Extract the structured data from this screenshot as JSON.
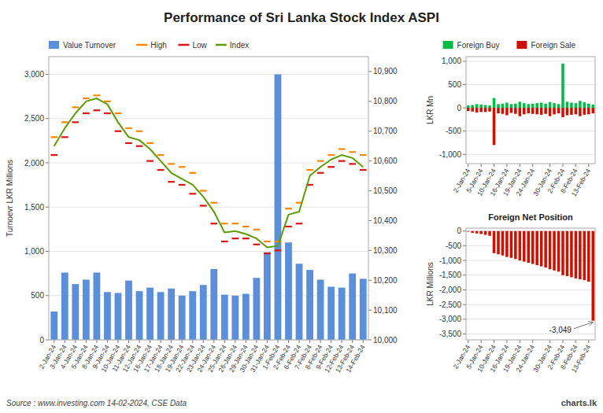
{
  "chart_data": [
    {
      "type": "bar",
      "title": "Performance of Sri Lanka Stock Index ASPI",
      "ylabel": "Turnoevr LKR Millions",
      "categories": [
        "2-Jan-24",
        "3-Jan-24",
        "4-Jan-24",
        "5-Jan-24",
        "8-Jan-24",
        "9-Jan-24",
        "10-Jan-24",
        "11-Jan-24",
        "12-Jan-24",
        "16-Jan-24",
        "17-Jan-24",
        "18-Jan-24",
        "19-Jan-24",
        "22-Jan-24",
        "23-Jan-24",
        "24-Jan-24",
        "25-Jan-24",
        "26-Jan-24",
        "29-Jan-24",
        "30-Jan-24",
        "31-Jan-24",
        "1-Feb-24",
        "2-Feb-24",
        "6-Feb-24",
        "7-Feb-24",
        "8-Feb-24",
        "9-Feb-24",
        "12-Feb-24",
        "13-Feb-24",
        "14-Feb-24"
      ],
      "series": [
        {
          "name": "Value Turnover",
          "type": "bar",
          "color": "#5b8fd9",
          "values": [
            320,
            760,
            630,
            680,
            760,
            540,
            530,
            670,
            550,
            590,
            540,
            580,
            500,
            550,
            620,
            800,
            510,
            500,
            520,
            700,
            990,
            3000,
            1100,
            860,
            790,
            680,
            600,
            590,
            750,
            690
          ]
        },
        {
          "name": "High",
          "type": "scatter",
          "marker": "dash",
          "axis": "y2",
          "color": "#ff8800",
          "values": [
            10680,
            10730,
            10780,
            10810,
            10820,
            10800,
            10760,
            10710,
            10700,
            10660,
            10620,
            10590,
            10580,
            10560,
            10500,
            10460,
            10390,
            10390,
            10380,
            10370,
            10330,
            10330,
            10440,
            10460,
            10570,
            10600,
            10620,
            10640,
            10630,
            10620
          ]
        },
        {
          "name": "Low",
          "type": "scatter",
          "marker": "dash",
          "axis": "y2",
          "color": "#dd1111",
          "values": [
            10620,
            10680,
            10730,
            10760,
            10770,
            10760,
            10700,
            10660,
            10650,
            10600,
            10570,
            10530,
            10520,
            10490,
            10450,
            10390,
            10330,
            10340,
            10340,
            10320,
            10290,
            10300,
            10380,
            10390,
            10520,
            10560,
            10580,
            10600,
            10590,
            10570
          ]
        },
        {
          "name": "Index",
          "type": "line",
          "axis": "y2",
          "color": "#5e9c00",
          "values": [
            10650,
            10710,
            10760,
            10800,
            10810,
            10790,
            10730,
            10680,
            10670,
            10640,
            10600,
            10560,
            10540,
            10520,
            10480,
            10430,
            10360,
            10365,
            10355,
            10340,
            10310,
            10315,
            10420,
            10430,
            10550,
            10580,
            10605,
            10620,
            10610,
            10580
          ]
        }
      ],
      "ylim": [
        0,
        3200
      ],
      "yticks": [
        0,
        500,
        {
          "value": 1000,
          "label": "1,000"
        },
        {
          "value": 1500,
          "label": "1,500"
        },
        {
          "value": 2000,
          "label": "2,000"
        },
        {
          "value": 2500,
          "label": "2,500"
        },
        {
          "value": 3000,
          "label": "3,000"
        }
      ],
      "y2lim": [
        10000,
        10950
      ],
      "y2ticks": [
        {
          "value": 10000,
          "label": "10,000"
        },
        {
          "value": 10100,
          "label": "10,100"
        },
        {
          "value": 10200,
          "label": "10,200"
        },
        {
          "value": 10300,
          "label": "10,300"
        },
        {
          "value": 10400,
          "label": "10,400"
        },
        {
          "value": 10500,
          "label": "10,500"
        },
        {
          "value": 10600,
          "label": "10,600"
        },
        {
          "value": 10700,
          "label": "10,700"
        },
        {
          "value": 10800,
          "label": "10,800"
        },
        {
          "value": 10900,
          "label": "10,900"
        }
      ],
      "grid": true,
      "legend": "upper left",
      "annotations": [
        {
          "text": "Source : www.investing.com 14-02-2024, CSE Data"
        },
        {
          "text": "charts.lk"
        }
      ]
    },
    {
      "type": "bar",
      "ylabel": "LKR Mn",
      "categories": [
        "2-Jan-24",
        null,
        null,
        "5-Jan-24",
        null,
        null,
        "10-Jan-24",
        null,
        null,
        "16-Jan-24",
        null,
        null,
        "19-Jan-24",
        null,
        null,
        "24-Jan-24",
        null,
        null,
        null,
        "30-Jan-24",
        null,
        null,
        "2-Feb-24",
        null,
        null,
        "8-Feb-24",
        null,
        null,
        "13-Feb-24",
        null
      ],
      "series": [
        {
          "name": "Foreign Buy",
          "color": "#00bb44",
          "values": [
            50,
            60,
            80,
            70,
            60,
            50,
            210,
            80,
            90,
            110,
            80,
            90,
            130,
            100,
            80,
            90,
            100,
            110,
            90,
            120,
            100,
            80,
            950,
            130,
            110,
            100,
            150,
            120,
            90,
            70
          ]
        },
        {
          "name": "Foreign Sale",
          "color": "#cc1100",
          "values": [
            -70,
            -80,
            -100,
            -90,
            -90,
            -80,
            -800,
            -120,
            -130,
            -160,
            -110,
            -130,
            -180,
            -140,
            -120,
            -130,
            -140,
            -150,
            -130,
            -180,
            -140,
            -120,
            -200,
            -160,
            -150,
            -140,
            -180,
            -150,
            -140,
            -120
          ]
        }
      ],
      "stacked": true,
      "ylim": [
        -1200,
        1100
      ],
      "yticks": [
        {
          "value": -1000,
          "label": "-1,000"
        },
        -500,
        0,
        500,
        {
          "value": 1000,
          "label": "1,000"
        }
      ],
      "grid": true,
      "legend": "upper right"
    },
    {
      "type": "bar",
      "title": "Foreign Net Position",
      "ylabel": "LKR Millions",
      "categories": [
        "2-Jan-24",
        null,
        null,
        "5-Jan-24",
        null,
        null,
        "10-Jan-24",
        null,
        null,
        "16-Jan-24",
        null,
        null,
        "19-Jan-24",
        null,
        null,
        "24-Jan-24",
        null,
        null,
        null,
        "30-Jan-24",
        null,
        null,
        "2-Feb-24",
        null,
        null,
        "8-Feb-24",
        null,
        null,
        "13-Feb-24",
        null
      ],
      "values": [
        -20,
        -60,
        -80,
        -100,
        -130,
        -160,
        -750,
        -790,
        -830,
        -880,
        -910,
        -950,
        -1000,
        -1040,
        -1080,
        -1120,
        -1160,
        -1200,
        -1240,
        -1300,
        -1340,
        -1380,
        -1500,
        -1530,
        -1570,
        -1610,
        -1640,
        -1670,
        -1720,
        -3049
      ],
      "color": "#cc1100",
      "ylim": [
        -3700,
        100
      ],
      "yticks": [
        0,
        -500,
        {
          "value": -1000,
          "label": "-1,000"
        },
        {
          "value": -1500,
          "label": "-1,500"
        },
        {
          "value": -2000,
          "label": "-2,000"
        },
        {
          "value": -2500,
          "label": "-2,500"
        },
        {
          "value": -3000,
          "label": "-3,000"
        },
        {
          "value": -3500,
          "label": "-3,500"
        }
      ],
      "grid": true,
      "annotations": [
        {
          "text": "-3,049",
          "value": -3049
        }
      ]
    }
  ]
}
